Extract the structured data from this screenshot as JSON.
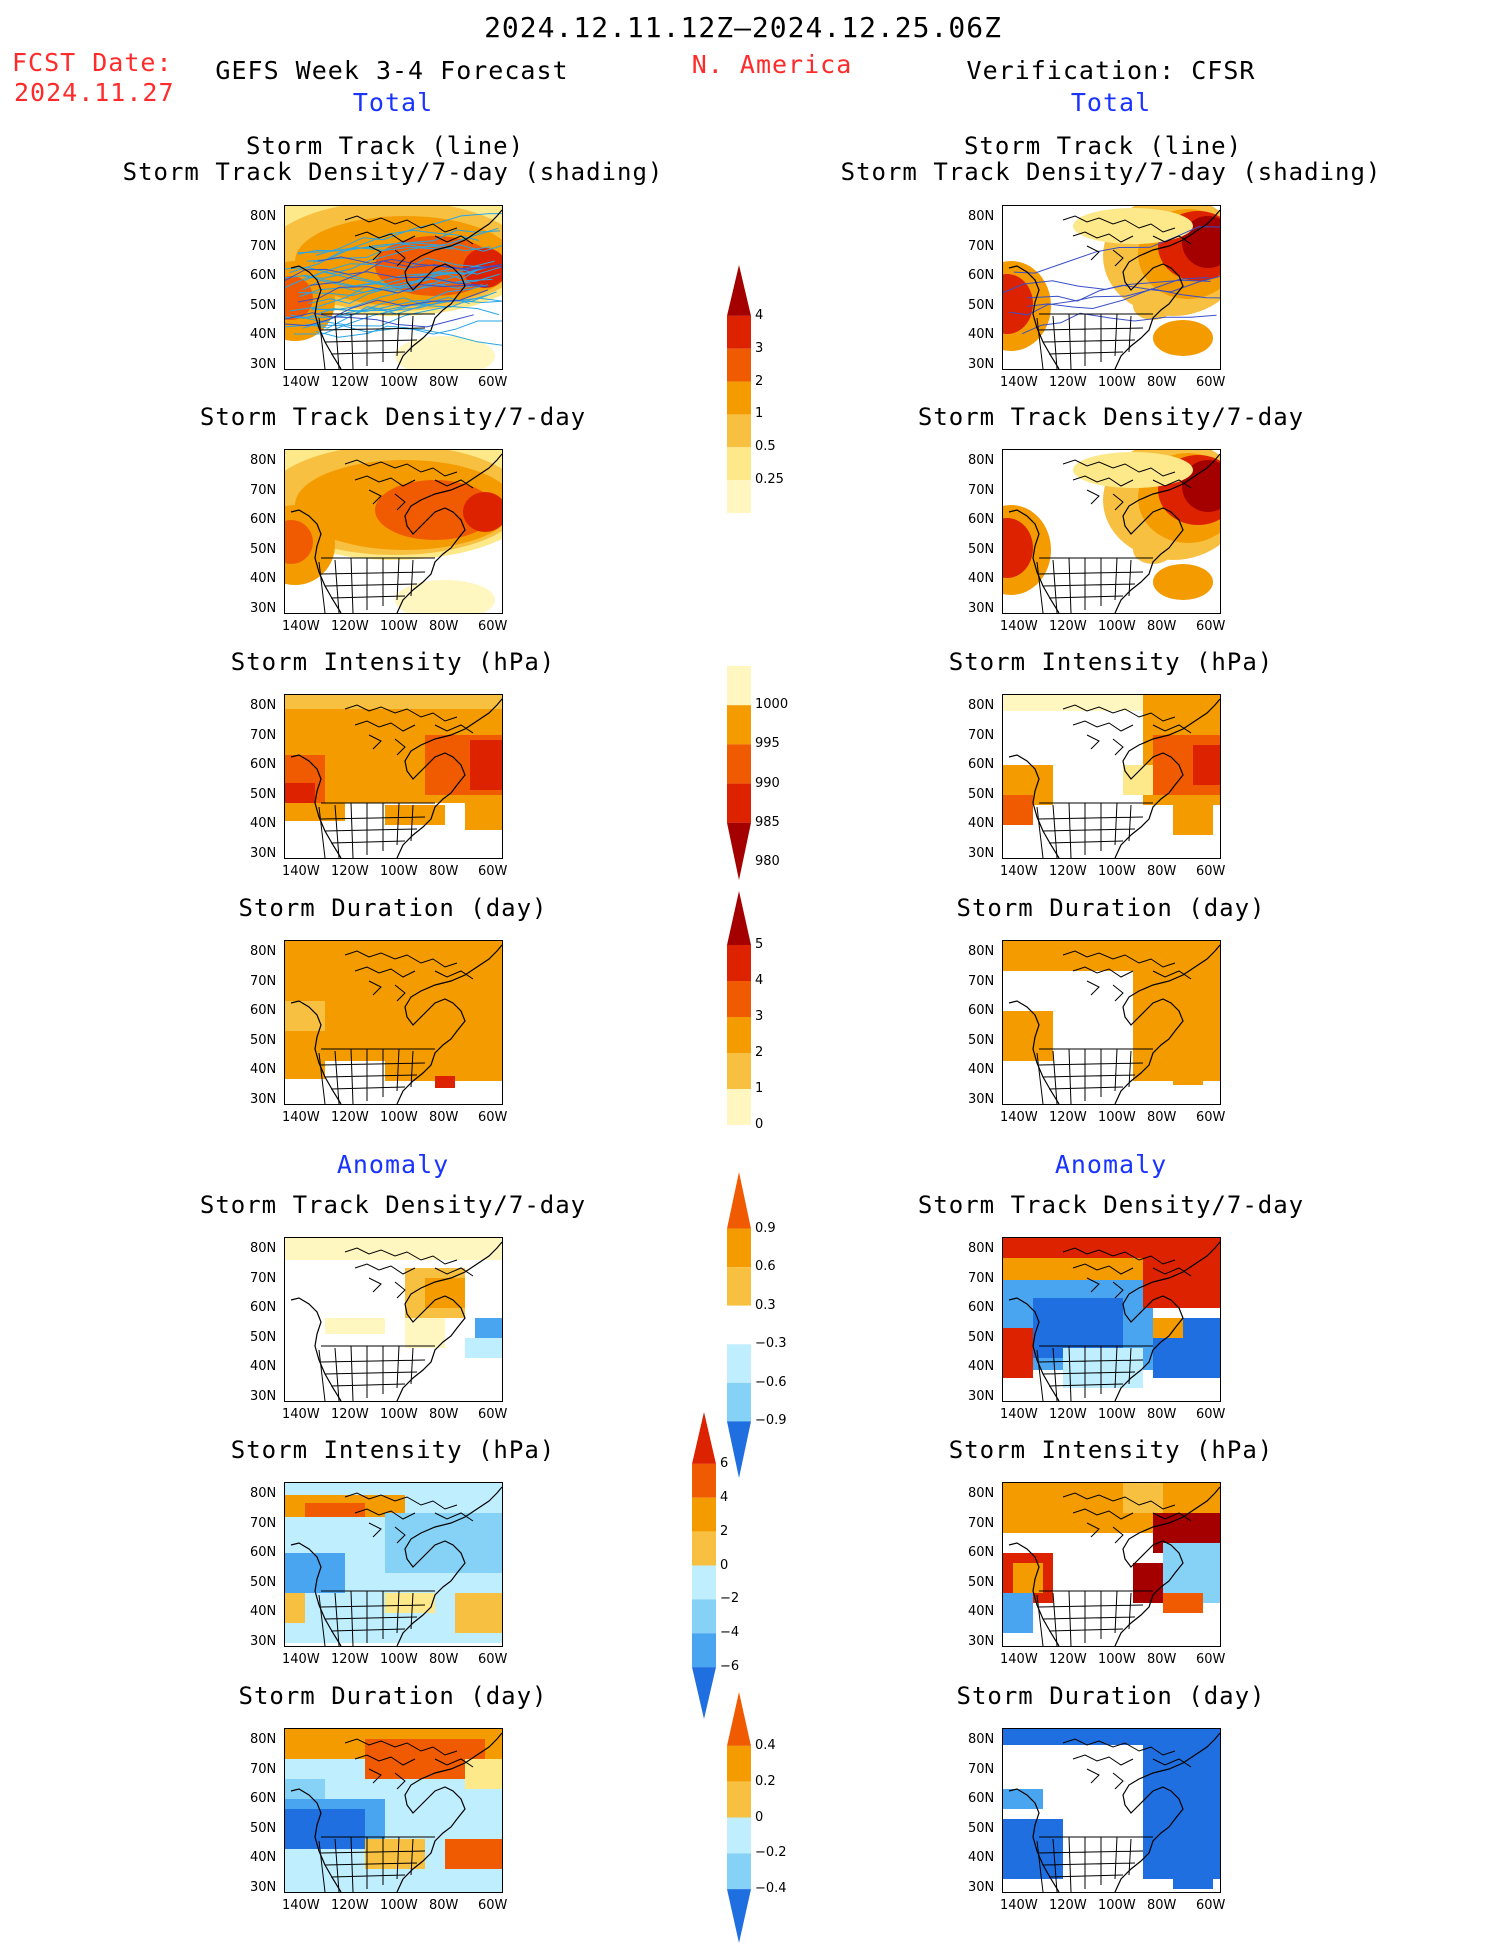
{
  "header": {
    "period": "2024.12.11.12Z–2024.12.25.06Z",
    "fcst_label": "FCST Date:",
    "fcst_date": "2024.11.27",
    "left_title": "GEFS Week 3-4 Forecast",
    "region": "N. America",
    "right_title": "Verification: CFSR",
    "total_left": "Total",
    "total_right": "Total",
    "anomaly_left": "Anomaly",
    "anomaly_right": "Anomaly"
  },
  "panel_titles": {
    "track_line": "Storm Track (line)",
    "track_shading": "Storm Track Density/7-day (shading)",
    "density": "Storm Track Density/7-day",
    "intensity": "Storm Intensity (hPa)",
    "duration": "Storm Duration (day)"
  },
  "axes": {
    "lat": [
      "80N",
      "70N",
      "60N",
      "50N",
      "40N",
      "30N"
    ],
    "lon": [
      "140W",
      "120W",
      "100W",
      "80W",
      "60W"
    ]
  },
  "colorbars": {
    "density_total": [
      "4",
      "3",
      "2",
      "1",
      "0.5",
      "0.25"
    ],
    "intensity_total": [
      "1000",
      "995",
      "990",
      "985",
      "980"
    ],
    "duration_total": [
      "5",
      "4",
      "3",
      "2",
      "1",
      "0"
    ],
    "density_anom": [
      "0.9",
      "0.6",
      "0.3",
      "−0.3",
      "−0.6",
      "−0.9"
    ],
    "intensity_anom": [
      "6",
      "4",
      "2",
      "0",
      "−2",
      "−4",
      "−6"
    ],
    "duration_anom": [
      "0.4",
      "0.2",
      "0",
      "−0.2",
      "−0.4"
    ]
  },
  "colors": {
    "dark_red": "#a50000",
    "red": "#dd2200",
    "red_orange": "#f05a00",
    "orange": "#f49b00",
    "light_orange": "#f8c040",
    "yellow": "#fde88a",
    "pale_yellow": "#fff6c0",
    "light_blue": "#bfeeff",
    "sky_blue": "#86d2f6",
    "mid_blue": "#4aa5f0",
    "blue": "#1f6fe0",
    "track_blue": "#2aa6e6"
  }
}
